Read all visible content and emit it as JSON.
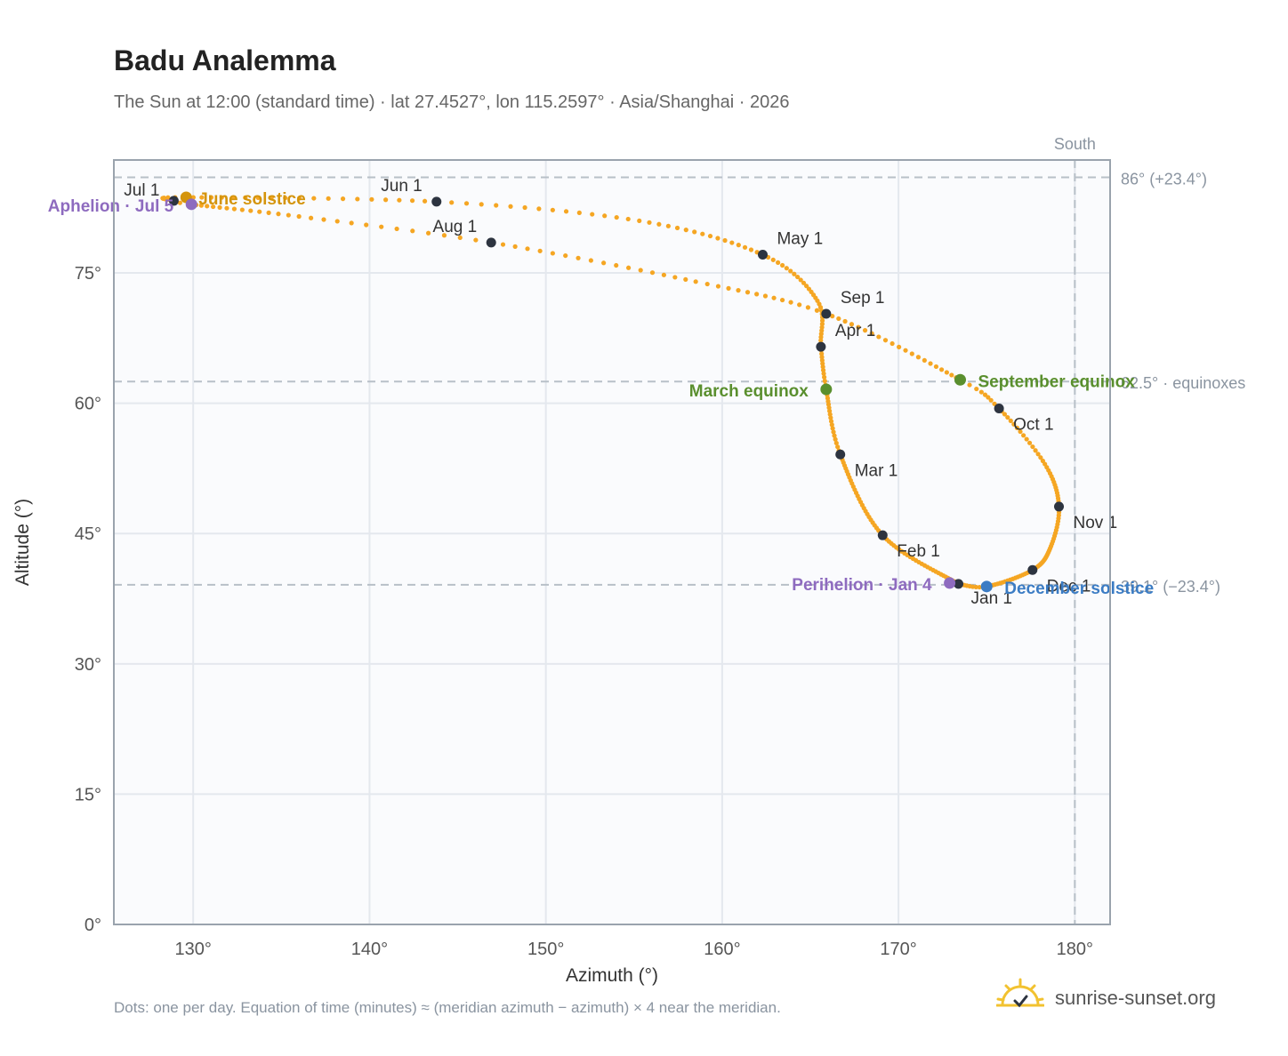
{
  "title": "Badu Analemma",
  "subtitle": "The Sun at 12:00 (standard time) · lat 27.4527°, lon 115.2597° · Asia/Shanghai · 2026",
  "footnote": "Dots: one per day. Equation of time (minutes) ≈ (meridian azimuth − azimuth) × 4 near the meridian.",
  "brand": {
    "name": "sunrise-sunset.org",
    "logo_icon": "sun-icon"
  },
  "colors": {
    "curve": "#f5a623",
    "month_dot": "#2d3440",
    "solstice": "#d4940c",
    "equinox": "#5a8f2e",
    "perihelion_aphelion": "#8e6bbf",
    "december_solstice": "#3b7cc4",
    "grid": "#e4e8ee",
    "plot_bg": "#fafbfd",
    "axis": "#9aa3ad",
    "ref_line": "#b8c0c8"
  },
  "chart_data": {
    "type": "scatter",
    "xlabel": "Azimuth (°)",
    "ylabel": "Altitude (°)",
    "xlim": [
      125.5,
      182
    ],
    "ylim": [
      0,
      88
    ],
    "xticks": [
      130,
      140,
      150,
      160,
      170,
      180
    ],
    "yticks": [
      0,
      15,
      30,
      45,
      60,
      75
    ],
    "xtick_labels": [
      "130°",
      "140°",
      "150°",
      "160°",
      "170°",
      "180°"
    ],
    "ytick_labels": [
      "0°",
      "15°",
      "30°",
      "45°",
      "60°",
      "75°"
    ],
    "grid": true,
    "reference_lines": [
      {
        "axis": "y",
        "value": 86,
        "label": "86° (+23.4°)"
      },
      {
        "axis": "y",
        "value": 62.5,
        "label": "62.5° · equinoxes"
      },
      {
        "axis": "y",
        "value": 39.1,
        "label": "39.1° (−23.4°)"
      },
      {
        "axis": "x",
        "value": 180,
        "label": "South"
      }
    ],
    "analemma_keypoints": [
      {
        "day": 1,
        "az": 173.4,
        "alt": 39.2
      },
      {
        "day": 32,
        "az": 169.1,
        "alt": 44.8
      },
      {
        "day": 60,
        "az": 166.7,
        "alt": 54.1
      },
      {
        "day": 79,
        "az": 165.9,
        "alt": 61.6
      },
      {
        "day": 91,
        "az": 165.6,
        "alt": 66.5
      },
      {
        "day": 105,
        "az": 165.4,
        "alt": 71.8
      },
      {
        "day": 121,
        "az": 162.3,
        "alt": 77.1
      },
      {
        "day": 137,
        "az": 155.3,
        "alt": 81.0
      },
      {
        "day": 152,
        "az": 143.8,
        "alt": 83.2
      },
      {
        "day": 172,
        "az": 129.6,
        "alt": 83.7
      },
      {
        "day": 182,
        "az": 128.9,
        "alt": 83.3
      },
      {
        "day": 186,
        "az": 129.9,
        "alt": 82.9
      },
      {
        "day": 200,
        "az": 136.0,
        "alt": 81.5
      },
      {
        "day": 213,
        "az": 146.9,
        "alt": 78.5
      },
      {
        "day": 230,
        "az": 158.5,
        "alt": 74.0
      },
      {
        "day": 244,
        "az": 165.9,
        "alt": 70.3
      },
      {
        "day": 266,
        "az": 173.5,
        "alt": 62.7
      },
      {
        "day": 274,
        "az": 175.7,
        "alt": 59.4
      },
      {
        "day": 290,
        "az": 178.3,
        "alt": 53.0
      },
      {
        "day": 305,
        "az": 179.1,
        "alt": 48.1
      },
      {
        "day": 320,
        "az": 178.6,
        "alt": 43.3
      },
      {
        "day": 335,
        "az": 177.6,
        "alt": 40.8
      },
      {
        "day": 355,
        "az": 175.0,
        "alt": 38.9
      },
      {
        "day": 365,
        "az": 173.4,
        "alt": 39.2
      }
    ],
    "month_markers": [
      {
        "label": "Jan 1",
        "az": 173.4,
        "alt": 39.2
      },
      {
        "label": "Feb 1",
        "az": 169.1,
        "alt": 44.8
      },
      {
        "label": "Mar 1",
        "az": 166.7,
        "alt": 54.1
      },
      {
        "label": "Apr 1",
        "az": 165.6,
        "alt": 66.5
      },
      {
        "label": "May 1",
        "az": 162.3,
        "alt": 77.1
      },
      {
        "label": "Jun 1",
        "az": 143.8,
        "alt": 83.2
      },
      {
        "label": "Jul 1",
        "az": 128.9,
        "alt": 83.3
      },
      {
        "label": "Aug 1",
        "az": 146.9,
        "alt": 78.5
      },
      {
        "label": "Sep 1",
        "az": 165.9,
        "alt": 70.3
      },
      {
        "label": "Oct 1",
        "az": 175.7,
        "alt": 59.4
      },
      {
        "label": "Nov 1",
        "az": 179.1,
        "alt": 48.1
      },
      {
        "label": "Dec 1",
        "az": 177.6,
        "alt": 40.8
      }
    ],
    "events": [
      {
        "label": "June solstice",
        "az": 129.6,
        "alt": 83.7,
        "kind": "solstice"
      },
      {
        "label": "Aphelion · Jul 5",
        "az": 129.9,
        "alt": 82.9,
        "kind": "apsis"
      },
      {
        "label": "March equinox",
        "az": 165.9,
        "alt": 61.6,
        "kind": "equinox"
      },
      {
        "label": "September equinox",
        "az": 173.5,
        "alt": 62.7,
        "kind": "equinox"
      },
      {
        "label": "Perihelion · Jan 4",
        "az": 172.9,
        "alt": 39.3,
        "kind": "apsis"
      },
      {
        "label": "December solstice",
        "az": 175.0,
        "alt": 38.9,
        "kind": "december"
      }
    ]
  }
}
